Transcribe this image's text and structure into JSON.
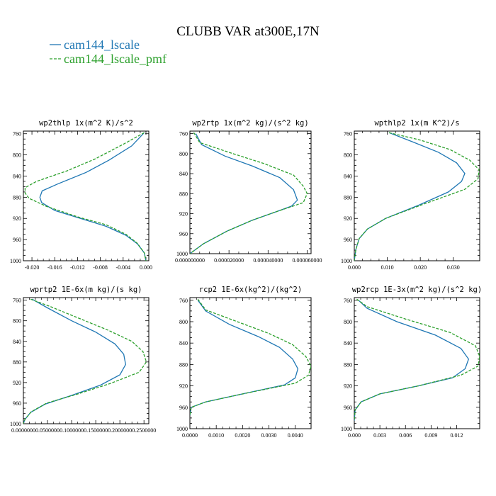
{
  "title": "CLUBB VAR at300E,17N",
  "legend": [
    {
      "label": "cam144_lscale",
      "color": "#1f77b4"
    },
    {
      "label": "cam144_lscale_pmf",
      "color": "#2ca02c"
    }
  ],
  "chart_data": [
    {
      "type": "line",
      "title": "wp2thlp  1x(m^2 K)/s^2",
      "xlim": [
        -0.0215,
        0.0005
      ],
      "ylim": [
        1000,
        755
      ],
      "xticks": [
        -0.02,
        -0.016,
        -0.012,
        -0.008,
        -0.004,
        0.0
      ],
      "xtick_labels": [
        "-0.020",
        "-0.016",
        "-0.012",
        "-0.008",
        "-0.004",
        "0.000"
      ],
      "yticks": [
        760,
        800,
        840,
        880,
        920,
        960,
        1000
      ],
      "series": [
        {
          "name": "cam144_lscale",
          "color": "#1f77b4",
          "style": "solid",
          "x": [
            -0.0003,
            -0.0025,
            -0.0065,
            -0.0105,
            -0.0155,
            -0.0182,
            -0.0186,
            -0.0183,
            -0.016,
            -0.0115,
            -0.007,
            -0.0035,
            -0.0015,
            -0.0003,
            0.0
          ],
          "y": [
            758,
            783,
            810,
            833,
            855,
            868,
            880,
            890,
            905,
            920,
            935,
            952,
            968,
            985,
            1000
          ]
        },
        {
          "name": "cam144_lscale_pmf",
          "color": "#2ca02c",
          "style": "dashed",
          "x": [
            -0.0003,
            -0.004,
            -0.009,
            -0.0138,
            -0.0192,
            -0.0212,
            -0.0212,
            -0.0205,
            -0.0175,
            -0.012,
            -0.007,
            -0.0035,
            -0.0015,
            -0.0003,
            0.0
          ],
          "y": [
            758,
            780,
            808,
            830,
            850,
            862,
            872,
            882,
            897,
            917,
            932,
            950,
            967,
            985,
            1000
          ]
        }
      ]
    },
    {
      "type": "line",
      "title": "wp2rtp  1x(m^2 kg)/(s^2 kg)",
      "xlim": [
        0.0,
        6.2e-05
      ],
      "ylim": [
        1000,
        755
      ],
      "xticks": [
        0.0,
        2e-05,
        4e-05,
        6e-05
      ],
      "xtick_labels": [
        "0.000000000",
        "0.000020000",
        "0.000040000",
        "0.000060000"
      ],
      "yticks": [
        760,
        800,
        840,
        880,
        920,
        960,
        1000
      ],
      "series": [
        {
          "name": "cam144_lscale",
          "color": "#1f77b4",
          "style": "solid",
          "x": [
            3e-06,
            6e-06,
            1.8e-05,
            3.2e-05,
            4.6e-05,
            5.3e-05,
            5.5e-05,
            5.2e-05,
            4.5e-05,
            3.2e-05,
            1.9e-05,
            7e-06,
            0.0
          ],
          "y": [
            760,
            782,
            805,
            825,
            848,
            872,
            893,
            905,
            915,
            933,
            955,
            980,
            1000
          ]
        },
        {
          "name": "cam144_lscale_pmf",
          "color": "#2ca02c",
          "style": "dashed",
          "x": [
            2e-06,
            5e-06,
            2.2e-05,
            3.8e-05,
            5.3e-05,
            5.8e-05,
            6e-05,
            5.8e-05,
            4.5e-05,
            3.2e-05,
            1.9e-05,
            7e-06,
            0.0
          ],
          "y": [
            758,
            778,
            800,
            820,
            843,
            865,
            880,
            898,
            915,
            933,
            955,
            980,
            1000
          ]
        }
      ]
    },
    {
      "type": "line",
      "title": "wpthlp2  1x(m K^2)/s",
      "xlim": [
        0.0,
        0.038
      ],
      "ylim": [
        1000,
        755
      ],
      "xticks": [
        0.0,
        0.01,
        0.02,
        0.03
      ],
      "xtick_labels": [
        "0.000",
        "0.010",
        "0.020",
        "0.030"
      ],
      "yticks": [
        760,
        800,
        840,
        880,
        920,
        960,
        1000
      ],
      "series": [
        {
          "name": "cam144_lscale",
          "color": "#1f77b4",
          "style": "solid",
          "x": [
            0.0105,
            0.0175,
            0.0255,
            0.031,
            0.0335,
            0.0325,
            0.0285,
            0.0195,
            0.0095,
            0.004,
            0.0015,
            0.0005,
            0.0
          ],
          "y": [
            758,
            775,
            795,
            815,
            835,
            850,
            870,
            895,
            920,
            940,
            958,
            978,
            1000
          ]
        },
        {
          "name": "cam144_lscale_pmf",
          "color": "#2ca02c",
          "style": "dashed",
          "x": [
            0.0105,
            0.02,
            0.029,
            0.035,
            0.0378,
            0.0375,
            0.0335,
            0.021,
            0.0095,
            0.004,
            0.0015,
            0.0005,
            0.0
          ],
          "y": [
            758,
            772,
            790,
            810,
            828,
            845,
            865,
            893,
            920,
            940,
            958,
            978,
            1000
          ]
        }
      ]
    },
    {
      "type": "line",
      "title": "wprtp2  1E-6x(m kg)/(s kg)",
      "xlim": [
        0.0,
        0.26
      ],
      "ylim": [
        1000,
        755
      ],
      "xticks": [
        0.0,
        0.05,
        0.1,
        0.15,
        0.2,
        0.25
      ],
      "xtick_labels": [
        "0.0000000",
        "0.0500000",
        "0.1000000",
        "0.1500000",
        "0.2000000",
        "0.2500000"
      ],
      "yticks": [
        760,
        800,
        840,
        880,
        920,
        960,
        1000
      ],
      "series": [
        {
          "name": "cam144_lscale",
          "color": "#1f77b4",
          "style": "solid",
          "x": [
            0.018,
            0.05,
            0.1,
            0.15,
            0.19,
            0.208,
            0.212,
            0.2,
            0.16,
            0.1,
            0.045,
            0.015,
            0.003,
            0.0
          ],
          "y": [
            758,
            775,
            800,
            822,
            845,
            865,
            885,
            905,
            925,
            945,
            962,
            978,
            992,
            1000
          ]
        },
        {
          "name": "cam144_lscale_pmf",
          "color": "#2ca02c",
          "style": "dashed",
          "x": [
            0.015,
            0.055,
            0.115,
            0.175,
            0.225,
            0.248,
            0.255,
            0.24,
            0.18,
            0.11,
            0.048,
            0.016,
            0.003,
            0.0
          ],
          "y": [
            758,
            772,
            795,
            818,
            840,
            860,
            880,
            900,
            922,
            943,
            960,
            977,
            992,
            1000
          ]
        }
      ]
    },
    {
      "type": "line",
      "title": "rcp2  1E-6x(kg^2)/(kg^2)",
      "xlim": [
        0.0,
        0.0046
      ],
      "ylim": [
        1000,
        755
      ],
      "xticks": [
        0.0,
        0.001,
        0.002,
        0.003,
        0.004
      ],
      "xtick_labels": [
        "0.0000",
        "0.0010",
        "0.0020",
        "0.0030",
        "0.0040"
      ],
      "yticks": [
        760,
        800,
        840,
        880,
        920,
        960,
        1000
      ],
      "series": [
        {
          "name": "cam144_lscale",
          "color": "#1f77b4",
          "style": "solid",
          "x": [
            0.0003,
            0.0006,
            0.0015,
            0.0026,
            0.0034,
            0.0039,
            0.0041,
            0.004,
            0.0036,
            0.002,
            0.0006,
            5e-05,
            0.0
          ],
          "y": [
            760,
            780,
            805,
            828,
            848,
            870,
            888,
            905,
            918,
            935,
            950,
            960,
            975
          ]
        },
        {
          "name": "cam144_lscale_pmf",
          "color": "#2ca02c",
          "style": "dashed",
          "x": [
            0.0003,
            0.0006,
            0.0018,
            0.003,
            0.0039,
            0.0044,
            0.0046,
            0.0045,
            0.004,
            0.0022,
            0.0006,
            5e-05,
            0.0
          ],
          "y": [
            758,
            778,
            800,
            822,
            843,
            865,
            883,
            900,
            915,
            933,
            950,
            960,
            975
          ]
        }
      ]
    },
    {
      "type": "line",
      "title": "wp2rcp  1E-3x(m^2 kg)/(s^2 kg)",
      "xlim": [
        0.0,
        0.0147
      ],
      "ylim": [
        1000,
        755
      ],
      "xticks": [
        0.0,
        0.003,
        0.006,
        0.009,
        0.012
      ],
      "xtick_labels": [
        "0.000",
        "0.003",
        "0.006",
        "0.009",
        "0.012"
      ],
      "yticks": [
        760,
        800,
        840,
        880,
        920,
        960,
        1000
      ],
      "series": [
        {
          "name": "cam144_lscale",
          "color": "#1f77b4",
          "style": "solid",
          "x": [
            0.0005,
            0.0015,
            0.005,
            0.0095,
            0.0125,
            0.0134,
            0.013,
            0.0115,
            0.0075,
            0.003,
            0.0008,
            0.0001,
            0.0
          ],
          "y": [
            760,
            775,
            800,
            825,
            850,
            870,
            888,
            905,
            920,
            935,
            950,
            965,
            985
          ]
        },
        {
          "name": "cam144_lscale_pmf",
          "color": "#2ca02c",
          "style": "dashed",
          "x": [
            0.0003,
            0.0015,
            0.006,
            0.0112,
            0.0142,
            0.0147,
            0.0145,
            0.0125,
            0.0075,
            0.003,
            0.0008,
            0.0001,
            0.0
          ],
          "y": [
            758,
            772,
            795,
            820,
            845,
            865,
            883,
            900,
            920,
            935,
            950,
            965,
            985
          ]
        }
      ]
    }
  ]
}
